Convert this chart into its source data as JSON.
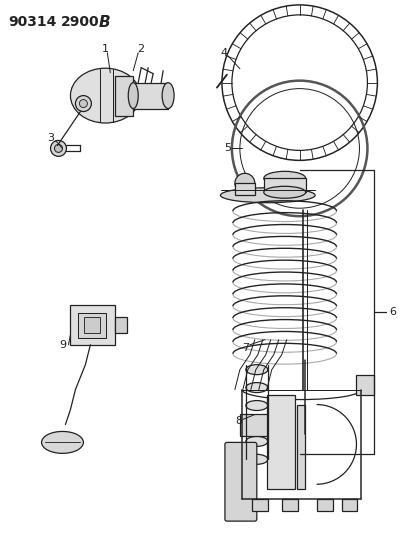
{
  "title": "90314  2900 B",
  "bg_color": "#ffffff",
  "line_color": "#222222",
  "title_fontsize": 10,
  "label_fontsize": 8,
  "figsize": [
    4.05,
    5.33
  ],
  "dpi": 100
}
